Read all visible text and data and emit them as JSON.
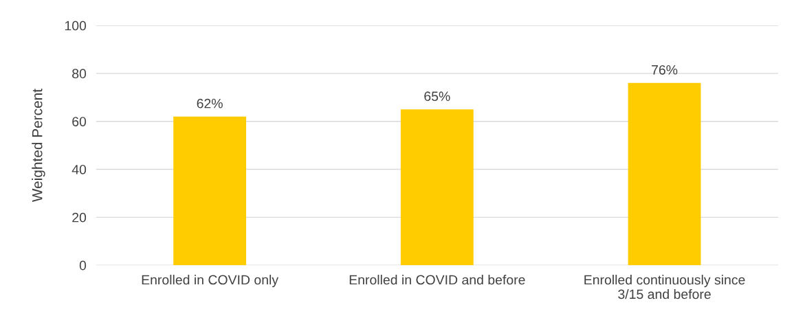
{
  "chart_data": {
    "type": "bar",
    "ylabel": "Weighted Percent",
    "categories": [
      "Enrolled in COVID only",
      "Enrolled in COVID and before",
      "Enrolled continuously since\n3/15 and before"
    ],
    "values": [
      62,
      65,
      76
    ],
    "value_labels": [
      "62%",
      "65%",
      "76%"
    ],
    "color": "#ffcc00",
    "ylim": [
      0,
      100
    ],
    "yticks": [
      0,
      20,
      40,
      60,
      80,
      100
    ],
    "grid": "y"
  }
}
